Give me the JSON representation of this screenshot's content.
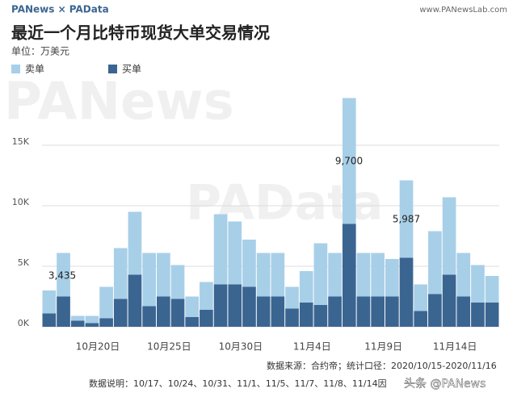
{
  "chart_data": {
    "type": "stacked_bar",
    "brand": "PANews × PAData",
    "website": "www.PANewsLab.com",
    "title": "最近一个月比特币现货大单交易情况",
    "subtitle": "单位：万美元",
    "watermarks": [
      "PANews",
      "PAData",
      "头条 @PANews"
    ],
    "source": "数据来源：合约帝；统计口径：2020/10/15-2020/11/16",
    "note": "数据说明：10/17、10/24、10/31、11/1、11/5、11/7、11/8、11/14因",
    "annotations": [
      "3,435",
      "9,700",
      "5,987"
    ],
    "categories": [
      null,
      null,
      null,
      "10月20日",
      null,
      null,
      null,
      null,
      "10月25日",
      null,
      null,
      null,
      null,
      "10月30日",
      null,
      null,
      null,
      null,
      "11月4日",
      null,
      null,
      null,
      null,
      "11月9日",
      null,
      null,
      null,
      null,
      "11月14日",
      null,
      null,
      null
    ],
    "series": [
      {
        "name": "买单",
        "color": "#3b6591",
        "values": [
          1100,
          2500,
          500,
          300,
          700,
          2300,
          4300,
          1700,
          2500,
          2300,
          800,
          1400,
          3500,
          3500,
          3300,
          2500,
          2500,
          1500,
          2000,
          1800,
          2500,
          8500,
          2500,
          2500,
          2500,
          5700,
          1300,
          2700,
          4300,
          2500,
          2000,
          2000
        ]
      },
      {
        "name": "卖单",
        "color": "#a8cfe8",
        "values": [
          1900,
          3600,
          400,
          600,
          2600,
          4200,
          5200,
          4400,
          3600,
          2800,
          1700,
          2300,
          5800,
          5200,
          3900,
          3600,
          3600,
          1800,
          2600,
          5100,
          3600,
          10400,
          3600,
          3600,
          3100,
          6400,
          2200,
          5200,
          6400,
          3600,
          3100,
          2200
        ]
      }
    ],
    "ylim": [
      0,
      19000
    ],
    "yticks": [
      {
        "value": 0,
        "label": "0K"
      },
      {
        "value": 5000,
        "label": "5K"
      },
      {
        "value": 10000,
        "label": "10K"
      },
      {
        "value": 15000,
        "label": "15K"
      }
    ],
    "grid": true
  }
}
